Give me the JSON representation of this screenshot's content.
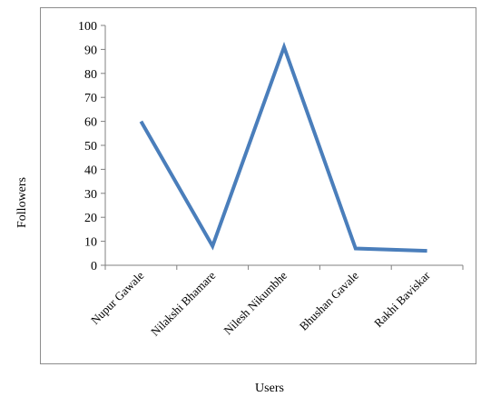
{
  "chart_data": {
    "type": "line",
    "title": "",
    "xlabel": "Users",
    "ylabel": "Followers",
    "categories": [
      "Nupur Gawale",
      "Nilakshi Bhamare",
      "Nilesh Nikumbhe",
      "Bhushan Gavale",
      "Rakhi Baviskar"
    ],
    "series": [
      {
        "values": [
          60,
          8,
          91,
          7,
          6
        ]
      }
    ],
    "ylim": [
      0,
      100
    ],
    "ytick_step": 10,
    "grid": false,
    "legend": "none",
    "line_color": "#4a7ebb"
  }
}
